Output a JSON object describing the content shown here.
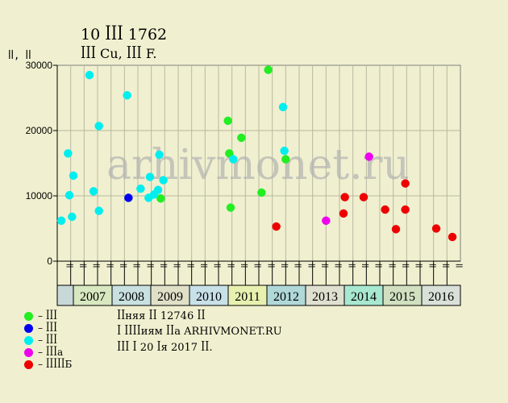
{
  "header": {
    "title": "10 ꟾꟾꟾ 1762",
    "subtitle": "ꟾꟾꟾ Cu, ꟾꟾꟾ F.",
    "y_unit": "ꟾꟾ, ꟾꟾ"
  },
  "watermark": "arhivmonet.ru",
  "legend": [
    {
      "label": "– ꟾꟾꟾ",
      "color": "#22ee22"
    },
    {
      "label": "– ꟾꟾꟾ",
      "color": "#0000ee"
    },
    {
      "label": "– ꟾꟾꟾ",
      "color": "#00eeee"
    },
    {
      "label": "– ꟾꟾꟾa",
      "color": "#ee00ee"
    },
    {
      "label": "– ꟾꟾꟾꟾꟾБ",
      "color": "#ee0000"
    }
  ],
  "notes": [
    "ꟾꟾняя ꟾꟾ 12746 ꟾꟾ",
    "ꟾ ꟾꟾꟾꟾиям ꟾꟾa ARHIVMONET.RU",
    "ꟾꟾꟾ ꟾ 20 ꟾя 2017 ꟾꟾ."
  ],
  "chart_data": {
    "type": "scatter",
    "ylim": [
      0,
      30000
    ],
    "yticks": [
      "0",
      "10000",
      "20000",
      "30000"
    ],
    "grid": true,
    "xlim": [
      0,
      30
    ],
    "years": [
      {
        "label": "2007",
        "color": "#d8e8c0"
      },
      {
        "label": "2008",
        "color": "#c8e0e0"
      },
      {
        "label": "2009",
        "color": "#e0e0c8"
      },
      {
        "label": "2010",
        "color": "#c8e0e8"
      },
      {
        "label": "2011",
        "color": "#e8f0b0"
      },
      {
        "label": "2012",
        "color": "#b0d8d8"
      },
      {
        "label": "2013",
        "color": "#e0e0d0"
      },
      {
        "label": "2014",
        "color": "#a8e8d0"
      },
      {
        "label": "2015",
        "color": "#d0e0c0"
      },
      {
        "label": "2016",
        "color": "#d8e0d8"
      }
    ],
    "month_labels": [
      "ꟾꟾ",
      "ꟾꟾ",
      "ꟾꟾ",
      "ꟾꟾ",
      "ꟾꟾ",
      "ꟾꟾ",
      "ꟾꟾ",
      "ꟾꟾ",
      "ꟾꟾ",
      "ꟾꟾ",
      "ꟾꟾ",
      "ꟾꟾ",
      "ꟾꟾ",
      "ꟾꟾ",
      "ꟾꟾ",
      "ꟾꟾ",
      "ꟾꟾ",
      "ꟾꟾ",
      "ꟾꟾ",
      "ꟾꟾ",
      "ꟾꟾ",
      "ꟾꟾ",
      "ꟾꟾ",
      "ꟾꟾ",
      "ꟾꟾ",
      "ꟾꟾ",
      "ꟾꟾ",
      "ꟾꟾ",
      "ꟾꟾ",
      "ꟾꟾ"
    ],
    "series": [
      {
        "color": "#22ee22",
        "points": [
          [
            7.7,
            9600
          ],
          [
            12.7,
            21500
          ],
          [
            12.8,
            16500
          ],
          [
            12.9,
            8200
          ],
          [
            13.7,
            18900
          ],
          [
            15.2,
            10500
          ],
          [
            15.7,
            29300
          ],
          [
            17.0,
            15600
          ]
        ]
      },
      {
        "color": "#0000ee",
        "points": [
          [
            5.3,
            9700
          ]
        ]
      },
      {
        "color": "#00eeee",
        "points": [
          [
            0.3,
            6200
          ],
          [
            0.8,
            16500
          ],
          [
            0.9,
            10100
          ],
          [
            1.1,
            6800
          ],
          [
            1.2,
            13100
          ],
          [
            2.4,
            28500
          ],
          [
            2.7,
            10700
          ],
          [
            3.1,
            7700
          ],
          [
            3.1,
            20700
          ],
          [
            5.2,
            25400
          ],
          [
            6.2,
            11100
          ],
          [
            6.8,
            9700
          ],
          [
            6.9,
            12900
          ],
          [
            7.2,
            10200
          ],
          [
            7.5,
            10900
          ],
          [
            7.6,
            16300
          ],
          [
            7.9,
            12400
          ],
          [
            13.1,
            15600
          ],
          [
            16.8,
            23600
          ],
          [
            16.9,
            16900
          ]
        ]
      },
      {
        "color": "#ee00ee",
        "points": [
          [
            20.0,
            6200
          ],
          [
            23.2,
            16000
          ]
        ]
      },
      {
        "color": "#ee0000",
        "points": [
          [
            16.3,
            5300
          ],
          [
            21.3,
            7300
          ],
          [
            21.4,
            9800
          ],
          [
            22.8,
            9800
          ],
          [
            24.4,
            7900
          ],
          [
            25.2,
            4900
          ],
          [
            25.9,
            7900
          ],
          [
            25.9,
            11900
          ],
          [
            28.2,
            5000
          ],
          [
            29.4,
            3700
          ]
        ]
      }
    ]
  }
}
